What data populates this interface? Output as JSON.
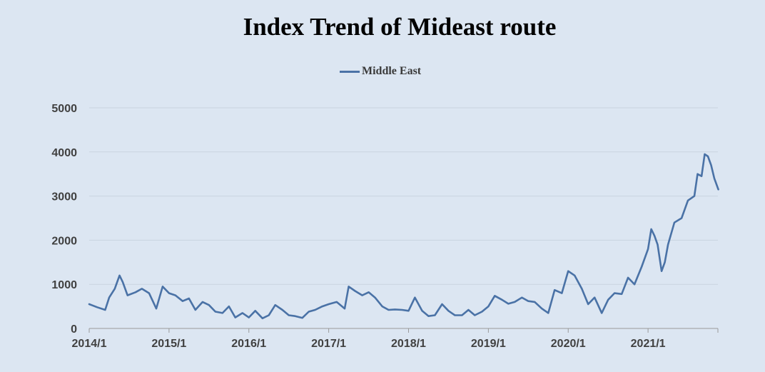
{
  "chart_data": {
    "type": "line",
    "title": "Index Trend of Mideast route",
    "xlabel": "",
    "ylabel": "",
    "ylim": [
      0,
      5000
    ],
    "yticks": [
      0,
      1000,
      2000,
      3000,
      4000,
      5000
    ],
    "xticks": [
      "2014/1",
      "2015/1",
      "2016/1",
      "2017/1",
      "2018/1",
      "2019/1",
      "2020/1",
      "2021/1"
    ],
    "grid": true,
    "legend_position": "top-center",
    "series": [
      {
        "name": "Middle East",
        "color": "#4a72a6",
        "x": [
          2014.0,
          2014.1,
          2014.2,
          2014.25,
          2014.32,
          2014.38,
          2014.42,
          2014.48,
          2014.58,
          2014.66,
          2014.75,
          2014.84,
          2014.92,
          2015.0,
          2015.08,
          2015.17,
          2015.25,
          2015.33,
          2015.42,
          2015.5,
          2015.58,
          2015.67,
          2015.75,
          2015.83,
          2015.92,
          2016.0,
          2016.08,
          2016.17,
          2016.25,
          2016.33,
          2016.42,
          2016.5,
          2016.58,
          2016.67,
          2016.75,
          2016.83,
          2016.92,
          2017.0,
          2017.1,
          2017.2,
          2017.25,
          2017.33,
          2017.42,
          2017.5,
          2017.58,
          2017.67,
          2017.75,
          2017.83,
          2017.92,
          2018.0,
          2018.08,
          2018.17,
          2018.25,
          2018.33,
          2018.42,
          2018.5,
          2018.58,
          2018.67,
          2018.75,
          2018.83,
          2018.92,
          2019.0,
          2019.08,
          2019.17,
          2019.25,
          2019.33,
          2019.42,
          2019.5,
          2019.58,
          2019.67,
          2019.75,
          2019.83,
          2019.92,
          2020.0,
          2020.08,
          2020.17,
          2020.25,
          2020.33,
          2020.42,
          2020.5,
          2020.58,
          2020.67,
          2020.75,
          2020.83,
          2020.92,
          2021.0,
          2021.04,
          2021.08,
          2021.12,
          2021.17,
          2021.21,
          2021.25,
          2021.33,
          2021.42,
          2021.5,
          2021.58,
          2021.62,
          2021.67,
          2021.71,
          2021.75,
          2021.79,
          2021.83,
          2021.88
        ],
        "values": [
          550,
          480,
          420,
          700,
          900,
          1200,
          1050,
          750,
          820,
          900,
          800,
          450,
          950,
          800,
          750,
          620,
          680,
          420,
          600,
          530,
          380,
          350,
          500,
          250,
          350,
          250,
          400,
          230,
          300,
          530,
          420,
          300,
          280,
          240,
          380,
          420,
          500,
          550,
          600,
          450,
          950,
          850,
          750,
          820,
          700,
          500,
          420,
          430,
          420,
          400,
          700,
          400,
          280,
          300,
          550,
          400,
          300,
          300,
          420,
          300,
          380,
          500,
          740,
          650,
          560,
          600,
          700,
          620,
          600,
          450,
          350,
          870,
          800,
          1300,
          1200,
          900,
          550,
          700,
          350,
          650,
          800,
          780,
          1150,
          1000,
          1400,
          1800,
          2250,
          2100,
          1900,
          1300,
          1500,
          1900,
          2400,
          2500,
          2900,
          3000,
          3500,
          3450,
          3950,
          3900,
          3700,
          3400,
          3150
        ]
      }
    ]
  }
}
